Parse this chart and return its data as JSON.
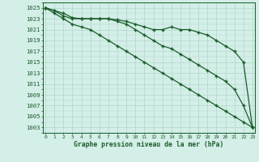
{
  "title": "Graphe pression niveau de la mer (hPa)",
  "bg_color": "#d4eee8",
  "grid_color": "#b0d8cc",
  "line_color": "#1a5c2a",
  "x_values": [
    0,
    1,
    2,
    3,
    4,
    5,
    6,
    7,
    8,
    9,
    10,
    11,
    12,
    13,
    14,
    15,
    16,
    17,
    18,
    19,
    20,
    21,
    22,
    23
  ],
  "line1": [
    1025,
    1024.5,
    1024,
    1023.2,
    1023,
    1023,
    1023,
    1023,
    1022.8,
    1022.5,
    1022,
    1021.5,
    1021,
    1021,
    1021.5,
    1021,
    1021,
    1020.5,
    1020,
    1019,
    1018,
    1017,
    1015,
    1003
  ],
  "line2": [
    1025,
    1024.5,
    1023.5,
    1023,
    1023,
    1023,
    1023,
    1023,
    1022.5,
    1022,
    1021,
    1020,
    1019,
    1018,
    1017.5,
    1016.5,
    1015.5,
    1014.5,
    1013.5,
    1012.5,
    1011.5,
    1010,
    1007,
    1003
  ],
  "line3": [
    1025,
    1024,
    1023,
    1022,
    1021.5,
    1021,
    1020,
    1019,
    1018,
    1017,
    1016,
    1015,
    1014,
    1013,
    1012,
    1011,
    1010,
    1009,
    1008,
    1007,
    1006,
    1005,
    1004,
    1003
  ],
  "ylim_min": 1002,
  "ylim_max": 1026,
  "yticks": [
    1003,
    1005,
    1007,
    1009,
    1011,
    1013,
    1015,
    1017,
    1019,
    1021,
    1023,
    1025
  ],
  "xticks": [
    0,
    1,
    2,
    3,
    4,
    5,
    6,
    7,
    8,
    9,
    10,
    11,
    12,
    13,
    14,
    15,
    16,
    17,
    18,
    19,
    20,
    21,
    22,
    23
  ]
}
